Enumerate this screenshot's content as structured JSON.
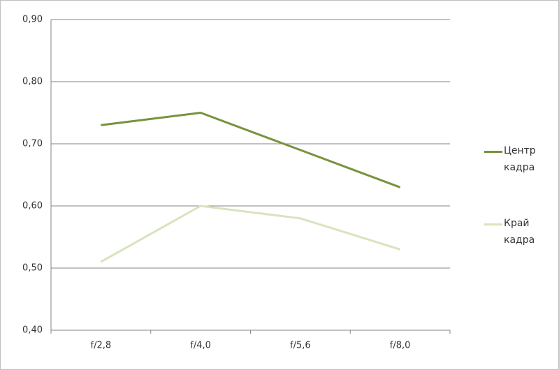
{
  "chart_data": {
    "type": "line",
    "categories": [
      "f/2,8",
      "f/4,0",
      "f/5,6",
      "f/8,0"
    ],
    "series": [
      {
        "name": "Центр кадра",
        "color": "#77933c",
        "values": [
          0.73,
          0.75,
          0.69,
          0.63
        ]
      },
      {
        "name": "Край кадра",
        "color": "#d7e4bd",
        "values": [
          0.51,
          0.6,
          0.58,
          0.53
        ]
      }
    ],
    "ylim": [
      0.4,
      0.9
    ],
    "yticks": [
      {
        "value": 0.4,
        "label": "0,40"
      },
      {
        "value": 0.5,
        "label": "0,50"
      },
      {
        "value": 0.6,
        "label": "0,60"
      },
      {
        "value": 0.7,
        "label": "0,70"
      },
      {
        "value": 0.8,
        "label": "0,80"
      },
      {
        "value": 0.9,
        "label": "0,90"
      }
    ],
    "grid": true,
    "legend": "right"
  }
}
